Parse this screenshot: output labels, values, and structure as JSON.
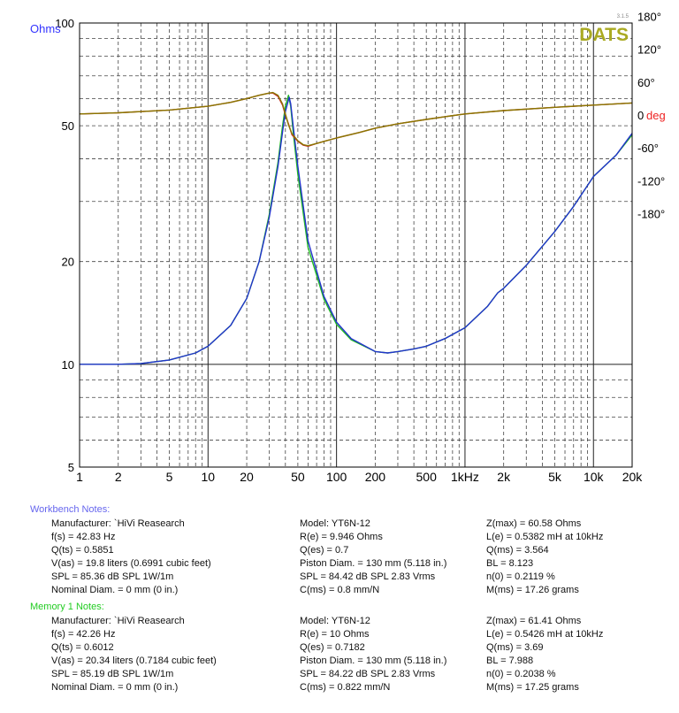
{
  "chart_data": {
    "type": "line",
    "title": "",
    "badge": "DATS",
    "version": "3.1.5",
    "x_scale": "log",
    "xlim": [
      1,
      20000
    ],
    "x_ticks": [
      1,
      2,
      5,
      10,
      20,
      50,
      100,
      200,
      500,
      1000,
      2000,
      5000,
      10000,
      20000
    ],
    "x_tick_labels": [
      "1",
      "2",
      "5",
      "10",
      "20",
      "50",
      "100",
      "200",
      "500",
      "1kHz",
      "2k",
      "5k",
      "10k",
      "20k"
    ],
    "y_scale": "log",
    "ylim": [
      5,
      100
    ],
    "y_ticks": [
      5,
      10,
      20,
      50,
      100
    ],
    "y_tick_labels": [
      "5",
      "10",
      "20",
      "50",
      "100"
    ],
    "ylabel": "Ohms",
    "ylabel_color": "#3333ff",
    "y2_ticks": [
      180,
      120,
      60,
      0,
      -60,
      -120,
      -180
    ],
    "y2_tick_labels": [
      "180°",
      "120°",
      "60°",
      "0",
      "-60°",
      "-120°",
      "-180°"
    ],
    "y2_unit": "deg",
    "y2_unit_color": "#ee2222",
    "grid": true,
    "series": [
      {
        "color": "#22bb22",
        "x": [
          1,
          2,
          3,
          5,
          8,
          10,
          15,
          20,
          25,
          30,
          35,
          38,
          40,
          42.3,
          44,
          46,
          50,
          60,
          80,
          100,
          130,
          200,
          250,
          300,
          400,
          500,
          700,
          1000,
          1500,
          1800,
          2000,
          3000,
          5000,
          7000,
          10000,
          15000,
          20000
        ],
        "y": [
          10,
          10,
          10.05,
          10.3,
          10.8,
          11.3,
          13,
          15.6,
          20,
          27.5,
          39,
          50,
          57,
          61.4,
          57,
          48,
          36,
          22,
          15.5,
          13.1,
          11.8,
          10.9,
          10.8,
          10.9,
          11.1,
          11.3,
          11.9,
          12.8,
          14.8,
          16.2,
          16.7,
          19.5,
          24.5,
          29,
          35.5,
          41,
          47
        ]
      },
      {
        "color": "#2233cc",
        "x": [
          1,
          2,
          3,
          5,
          8,
          10,
          15,
          20,
          25,
          30,
          35,
          38,
          40,
          42.8,
          44,
          46,
          50,
          60,
          80,
          100,
          130,
          200,
          250,
          300,
          400,
          500,
          700,
          1000,
          1500,
          1800,
          2000,
          3000,
          5000,
          7000,
          10000,
          15000,
          20000
        ],
        "y": [
          10,
          10,
          10.05,
          10.3,
          10.8,
          11.3,
          13,
          15.6,
          20,
          27,
          38,
          48,
          55,
          60.6,
          58,
          50,
          38,
          23,
          15.8,
          13.3,
          11.9,
          10.9,
          10.8,
          10.9,
          11.1,
          11.3,
          11.9,
          12.8,
          14.8,
          16.2,
          16.7,
          19.5,
          24.5,
          29,
          35.5,
          41,
          47.5
        ]
      },
      {
        "color": "#cc2222",
        "axis": "phase",
        "x": [
          1,
          2,
          5,
          10,
          15,
          20,
          25,
          30,
          32,
          35,
          38,
          40,
          42.8,
          45,
          50,
          55,
          60,
          70,
          80,
          100,
          150,
          200,
          300,
          500,
          700,
          1000,
          2000,
          5000,
          10000,
          20000
        ],
        "y": [
          2,
          4,
          9,
          16,
          23,
          30,
          36,
          40,
          40,
          34,
          18,
          0,
          -20,
          -36,
          -48,
          -55,
          -57,
          -52,
          -48,
          -42,
          -32,
          -24,
          -16,
          -8,
          -3,
          2,
          8,
          14,
          18,
          22
        ]
      },
      {
        "color": "#887700",
        "axis": "phase",
        "x": [
          1,
          2,
          5,
          10,
          15,
          20,
          25,
          30,
          32,
          35,
          38,
          40,
          42.3,
          45,
          50,
          55,
          60,
          70,
          80,
          100,
          150,
          200,
          300,
          500,
          700,
          1000,
          2000,
          5000,
          10000,
          20000
        ],
        "y": [
          2,
          4,
          9,
          16,
          23,
          30,
          36,
          40,
          41,
          36,
          20,
          2,
          -18,
          -34,
          -47,
          -54,
          -56,
          -52,
          -48,
          -42,
          -32,
          -24,
          -16,
          -8,
          -3,
          2,
          8,
          14,
          18,
          22
        ]
      }
    ]
  },
  "notes": [
    {
      "title": "Workbench Notes:",
      "title_color": "#6666ee",
      "col1": [
        "Manufacturer: `HiVi Reasearch",
        "f(s) = 42.83 Hz",
        "Q(ts) = 0.5851",
        "V(as) = 19.8 liters  (0.6991 cubic feet)",
        "SPL = 85.36 dB SPL 1W/1m",
        "Nominal Diam. = 0 mm (0 in.)"
      ],
      "col2": [
        "Model: YT6N-12",
        "R(e) = 9.946 Ohms",
        "Q(es) = 0.7",
        "Piston Diam. = 130 mm (5.118 in.)",
        "SPL = 84.42 dB SPL 2.83 Vrms",
        "C(ms) = 0.8 mm/N"
      ],
      "col3": [
        "Z(max) = 60.58 Ohms",
        "L(e) = 0.5382 mH at 10kHz",
        "Q(ms) = 3.564",
        "BL = 8.123",
        "n(0) = 0.2119 %",
        "M(ms) = 17.26 grams"
      ]
    },
    {
      "title": "Memory 1 Notes:",
      "title_color": "#22cc22",
      "col1": [
        "Manufacturer: `HiVi Reasearch",
        "f(s) = 42.26 Hz",
        "Q(ts) = 0.6012",
        "V(as) = 20.34 liters  (0.7184 cubic feet)",
        "SPL = 85.19 dB SPL 1W/1m",
        "Nominal Diam. = 0 mm (0 in.)"
      ],
      "col2": [
        "Model: YT6N-12",
        "R(e) = 10 Ohms",
        "Q(es) = 0.7182",
        "Piston Diam. = 130 mm (5.118 in.)",
        "SPL = 84.22 dB SPL 2.83 Vrms",
        "C(ms) = 0.822 mm/N"
      ],
      "col3": [
        "Z(max) = 61.41 Ohms",
        "L(e) = 0.5426 mH at 10kHz",
        "Q(ms) = 3.69",
        "BL = 7.988",
        "n(0) = 0.2038 %",
        "M(ms) = 17.25 grams"
      ]
    }
  ]
}
